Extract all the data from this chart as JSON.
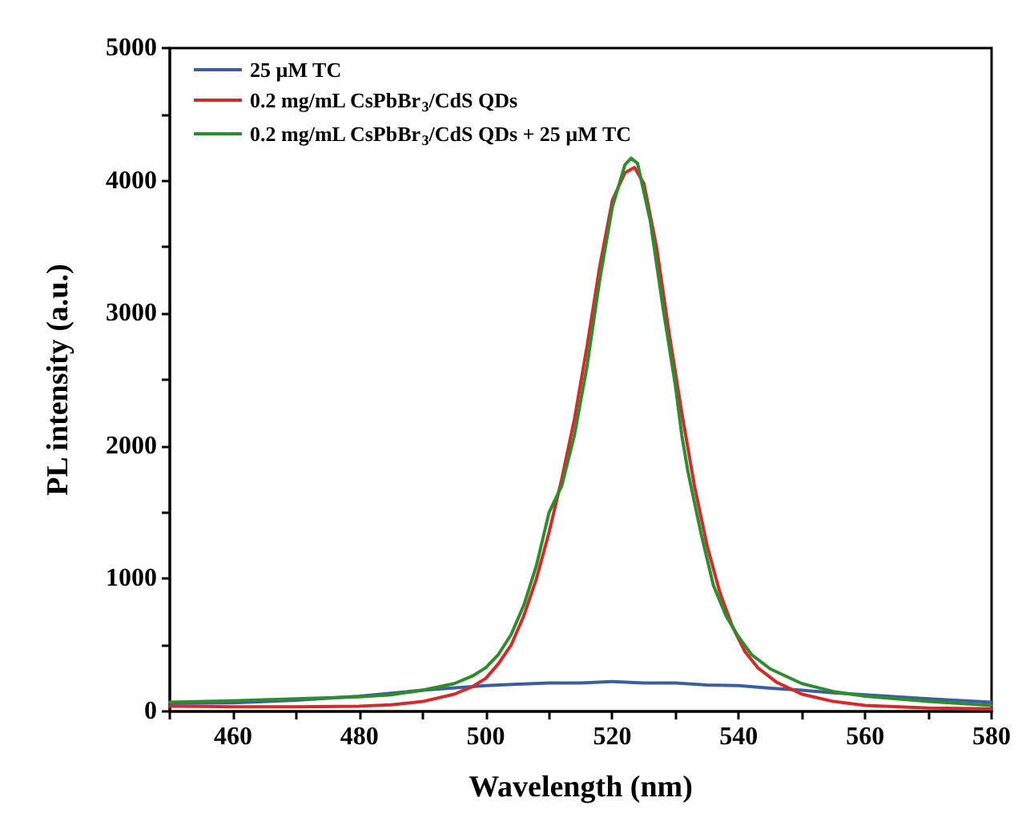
{
  "chart_data": {
    "type": "line",
    "xlabel": "Wavelength (nm)",
    "ylabel": "PL intensity (a.u.)",
    "xlim": [
      450,
      580
    ],
    "ylim": [
      0,
      5000
    ],
    "xticks": [
      {
        "value": 450,
        "label": null
      },
      460,
      {
        "value": 470,
        "label": null
      },
      480,
      {
        "value": 490,
        "label": null
      },
      500,
      {
        "value": 510,
        "label": null
      },
      520,
      {
        "value": 530,
        "label": null
      },
      540,
      {
        "value": 550,
        "label": null
      },
      560,
      {
        "value": 570,
        "label": null
      },
      580
    ],
    "yticks": [
      0,
      {
        "value": 500,
        "label": null
      },
      1000,
      {
        "value": 1500,
        "label": null
      },
      2000,
      {
        "value": 2500,
        "label": null
      },
      3000,
      {
        "value": 3500,
        "label": null
      },
      4000,
      {
        "value": 4500,
        "label": null
      },
      5000
    ],
    "grid": false,
    "legend": "top left",
    "marker": "none",
    "line_style": "solid",
    "series": [
      {
        "name": "25 µM TC",
        "color": "#3a5fa0",
        "x": [
          450,
          460,
          470,
          480,
          490,
          500,
          505,
          510,
          515,
          520,
          525,
          530,
          535,
          540,
          545,
          550,
          555,
          560,
          570,
          580
        ],
        "values": [
          60,
          65,
          85,
          115,
          160,
          195,
          205,
          215,
          215,
          225,
          215,
          215,
          200,
          195,
          175,
          160,
          140,
          125,
          95,
          70
        ]
      },
      {
        "name": "0.2 mg/mL CsPbBr$_{3}$/CdS QDs",
        "color": "#d42a2a",
        "x": [
          450,
          460,
          470,
          480,
          485,
          490,
          495,
          498,
          500,
          502,
          504,
          506,
          508,
          510,
          512,
          514,
          516,
          518,
          520,
          522,
          523.5,
          525,
          527,
          529,
          531,
          533,
          535,
          537,
          539,
          541,
          543,
          546,
          550,
          555,
          560,
          570,
          580
        ],
        "values": [
          40,
          35,
          35,
          40,
          50,
          75,
          130,
          190,
          250,
          360,
          500,
          720,
          1000,
          1350,
          1750,
          2200,
          2750,
          3350,
          3850,
          4060,
          4100,
          3980,
          3500,
          2850,
          2250,
          1700,
          1250,
          900,
          640,
          450,
          330,
          220,
          130,
          75,
          45,
          25,
          20
        ]
      },
      {
        "name": "0.2 mg/mL CsPbBr$_{3}$/CdS QDs + 25 µM TC",
        "color": "#2e8b2e",
        "x": [
          450,
          460,
          470,
          480,
          485,
          490,
          495,
          498,
          500,
          502,
          504,
          506,
          508,
          510,
          512,
          514,
          516,
          518,
          520,
          522,
          523,
          524,
          526,
          528,
          530,
          531,
          532,
          534,
          536,
          538,
          540,
          542,
          545,
          550,
          555,
          560,
          570,
          580
        ],
        "values": [
          70,
          80,
          95,
          110,
          125,
          160,
          210,
          270,
          330,
          430,
          580,
          800,
          1100,
          1500,
          1700,
          2080,
          2600,
          3250,
          3800,
          4120,
          4170,
          4130,
          3700,
          3050,
          2450,
          2080,
          1800,
          1350,
          950,
          720,
          560,
          430,
          320,
          210,
          150,
          115,
          75,
          45
        ]
      }
    ]
  }
}
